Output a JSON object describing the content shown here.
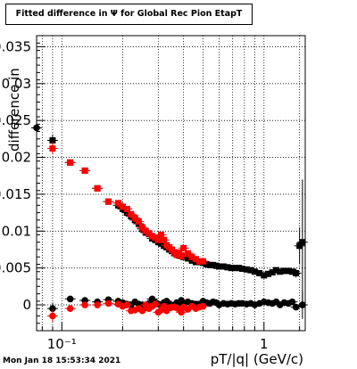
{
  "chart_data": {
    "type": "scatter",
    "title": "Fitted difference in  Ψ  for Global Rec Pion EtapT",
    "xlabel": "pT/|q| (GeV/c)",
    "ylabel": "difference in",
    "x_scale": "log",
    "xlim": [
      0.075,
      1.6
    ],
    "ylim": [
      -0.0035,
      0.0365
    ],
    "x_tick_labels": [
      "10⁻¹",
      "1"
    ],
    "y_tick_labels": [
      "0",
      "0.005",
      "0.01",
      "0.015",
      "0.02",
      "0.025",
      "0.03",
      "0.035"
    ],
    "grid": true,
    "colors": {
      "black_series": "#000000",
      "red_series": "#ff0000"
    },
    "series": [
      {
        "color": "black",
        "marker": "square",
        "x": [
          0.09,
          0.11,
          0.13,
          0.15,
          0.17,
          0.19,
          0.2,
          0.21,
          0.22,
          0.23,
          0.24,
          0.25,
          0.26,
          0.27,
          0.28,
          0.29,
          0.3,
          0.31,
          0.32,
          0.33,
          0.34,
          0.35,
          0.36,
          0.37,
          0.38,
          0.39,
          0.4,
          0.42,
          0.44,
          0.46,
          0.48,
          0.5,
          0.52,
          0.54,
          0.56,
          0.58,
          0.6,
          0.63,
          0.66,
          0.69,
          0.72,
          0.75,
          0.78,
          0.82,
          0.86,
          0.9,
          0.95,
          1.0,
          1.05,
          1.1,
          1.15,
          1.2,
          1.26,
          1.32,
          1.38,
          1.44,
          1.5,
          1.55
        ],
        "y": [
          0.0223,
          0.0193,
          0.0182,
          0.0158,
          0.014,
          0.0135,
          0.013,
          0.0125,
          0.012,
          0.0115,
          0.011,
          0.0103,
          0.0098,
          0.0096,
          0.009,
          0.0088,
          0.0085,
          0.0083,
          0.008,
          0.0078,
          0.0075,
          0.0073,
          0.007,
          0.0068,
          0.0067,
          0.0066,
          0.0065,
          0.0063,
          0.006,
          0.0058,
          0.0058,
          0.0057,
          0.0055,
          0.0054,
          0.0054,
          0.0053,
          0.0052,
          0.0052,
          0.0051,
          0.005,
          0.005,
          0.005,
          0.0049,
          0.0048,
          0.0047,
          0.0045,
          0.0043,
          0.004,
          0.0042,
          0.0044,
          0.0047,
          0.0045,
          0.0046,
          0.0046,
          0.0045,
          0.0043,
          0.008,
          0.0085
        ],
        "y_err": [
          0.0008,
          0.0004,
          0.0003,
          0.0003,
          0.0003,
          0.0003,
          0.0003,
          0.0003,
          0.0003,
          0.0003,
          0.0003,
          0.0003,
          0.0003,
          0.0003,
          0.0003,
          0.0003,
          0.0003,
          0.0003,
          0.0003,
          0.0003,
          0.0003,
          0.0003,
          0.0003,
          0.0003,
          0.0003,
          0.0003,
          0.0003,
          0.0003,
          0.0003,
          0.0003,
          0.0003,
          0.0003,
          0.0003,
          0.0003,
          0.0003,
          0.0003,
          0.0003,
          0.0003,
          0.0003,
          0.0003,
          0.0003,
          0.0003,
          0.0003,
          0.0003,
          0.0003,
          0.0003,
          0.0003,
          0.0003,
          0.0003,
          0.0003,
          0.0003,
          0.0003,
          0.0003,
          0.0003,
          0.0003,
          0.0006,
          0.0025,
          0.0085
        ]
      },
      {
        "color": "red",
        "marker": "square",
        "x": [
          0.09,
          0.11,
          0.13,
          0.15,
          0.17,
          0.19,
          0.2,
          0.21,
          0.22,
          0.23,
          0.24,
          0.25,
          0.26,
          0.27,
          0.28,
          0.29,
          0.3,
          0.31,
          0.32,
          0.33,
          0.34,
          0.35,
          0.36,
          0.37,
          0.38,
          0.39,
          0.4,
          0.42,
          0.44,
          0.46,
          0.48,
          0.5
        ],
        "y": [
          0.0212,
          0.0193,
          0.0182,
          0.0158,
          0.014,
          0.0138,
          0.0133,
          0.013,
          0.0123,
          0.0118,
          0.0113,
          0.0105,
          0.01,
          0.0097,
          0.0093,
          0.0091,
          0.0088,
          0.0095,
          0.0088,
          0.0081,
          0.0078,
          0.0075,
          0.0071,
          0.0068,
          0.0071,
          0.0066,
          0.0077,
          0.007,
          0.0065,
          0.0062,
          0.0059,
          0.0059
        ],
        "y_err": [
          0.0008,
          0.0004,
          0.0003,
          0.0003,
          0.0003,
          0.0003,
          0.0003,
          0.0003,
          0.0003,
          0.0003,
          0.0003,
          0.0003,
          0.0003,
          0.0003,
          0.0003,
          0.0003,
          0.0003,
          0.0003,
          0.0003,
          0.0003,
          0.0003,
          0.0003,
          0.0003,
          0.0003,
          0.0003,
          0.0003,
          0.0003,
          0.0003,
          0.0003,
          0.0003,
          0.0003,
          0.0003
        ]
      },
      {
        "color": "black",
        "marker": "circle",
        "x": [
          0.075,
          0.09,
          0.11,
          0.13,
          0.15,
          0.17,
          0.19,
          0.2,
          0.21,
          0.22,
          0.23,
          0.24,
          0.25,
          0.26,
          0.27,
          0.28,
          0.29,
          0.3,
          0.31,
          0.32,
          0.33,
          0.34,
          0.35,
          0.36,
          0.37,
          0.38,
          0.39,
          0.4,
          0.42,
          0.44,
          0.46,
          0.48,
          0.5,
          0.52,
          0.54,
          0.56,
          0.58,
          0.6,
          0.63,
          0.66,
          0.69,
          0.72,
          0.75,
          0.78,
          0.82,
          0.86,
          0.9,
          0.95,
          1.0,
          1.05,
          1.1,
          1.15,
          1.2,
          1.26,
          1.32,
          1.38,
          1.44,
          1.55
        ],
        "y": [
          0.024,
          -0.0005,
          0.0008,
          0.0006,
          0.0004,
          0.0007,
          0.0005,
          0.0003,
          0.0001,
          0.0,
          0.0004,
          0.0001,
          0.0,
          -0.0003,
          0.0002,
          0.0008,
          0.0003,
          0.0001,
          0.0,
          0.0003,
          0.0005,
          0.0001,
          -0.0002,
          0.0,
          0.0003,
          0.0001,
          0.0006,
          0.0,
          0.0004,
          0.0002,
          0.0001,
          0.0,
          0.0005,
          0.0003,
          0.0002,
          0.0004,
          0.0003,
          0.0,
          0.0002,
          0.0001,
          0.0002,
          0.0001,
          0.0002,
          0.0002,
          0.0001,
          0.0002,
          0.0,
          0.0002,
          0.0004,
          0.0003,
          0.0002,
          0.0004,
          0.0,
          0.0003,
          0.0002,
          0.0004,
          -0.0003,
          0.0
        ],
        "y_err": [
          0.0003,
          0.0008,
          0.0003,
          0.0003,
          0.0003,
          0.0003,
          0.0003,
          0.0003,
          0.0003,
          0.0003,
          0.0003,
          0.0003,
          0.0003,
          0.0003,
          0.0003,
          0.0003,
          0.0003,
          0.0003,
          0.0003,
          0.0003,
          0.0003,
          0.0003,
          0.0003,
          0.0003,
          0.0003,
          0.0003,
          0.0003,
          0.0003,
          0.0003,
          0.0003,
          0.0003,
          0.0003,
          0.0003,
          0.0003,
          0.0003,
          0.0003,
          0.0003,
          0.0003,
          0.0003,
          0.0003,
          0.0003,
          0.0003,
          0.0003,
          0.0003,
          0.0003,
          0.0003,
          0.0003,
          0.0003,
          0.0003,
          0.0003,
          0.0003,
          0.0003,
          0.0003,
          0.0003,
          0.0003,
          0.0003,
          0.0003,
          0.0019
        ]
      },
      {
        "color": "red",
        "marker": "circle",
        "x": [
          0.09,
          0.11,
          0.13,
          0.15,
          0.17,
          0.19,
          0.2,
          0.21,
          0.22,
          0.23,
          0.24,
          0.25,
          0.26,
          0.27,
          0.28,
          0.29,
          0.3,
          0.31,
          0.32,
          0.33,
          0.34,
          0.35,
          0.36,
          0.37,
          0.38,
          0.39,
          0.4,
          0.42,
          0.44,
          0.46,
          0.48,
          0.5
        ],
        "y": [
          -0.0015,
          -0.0005,
          0.0,
          0.0,
          0.0002,
          0.0001,
          -0.0002,
          0.0,
          -0.0008,
          -0.0007,
          -0.0005,
          -0.0008,
          0.0,
          -0.0005,
          -0.0002,
          0.0001,
          -0.001,
          -0.0007,
          -0.0002,
          -0.0008,
          -0.0004,
          -0.0003,
          -0.0003,
          -0.0004,
          -0.0006,
          -0.001,
          -0.0003,
          -0.0006,
          -0.0002,
          -0.0005,
          -0.0003,
          -0.0002
        ],
        "y_err": [
          0.0008,
          0.0004,
          0.0003,
          0.0003,
          0.0003,
          0.0003,
          0.0003,
          0.0003,
          0.0003,
          0.0003,
          0.0003,
          0.0003,
          0.0003,
          0.0003,
          0.0003,
          0.0003,
          0.0003,
          0.0003,
          0.0003,
          0.0003,
          0.0003,
          0.0003,
          0.0003,
          0.0003,
          0.0003,
          0.0003,
          0.0003,
          0.0003,
          0.0003,
          0.0003,
          0.0003,
          0.0003
        ]
      }
    ]
  },
  "footer": {
    "timestamp": "Mon Jan 18 15:53:34 2021"
  }
}
